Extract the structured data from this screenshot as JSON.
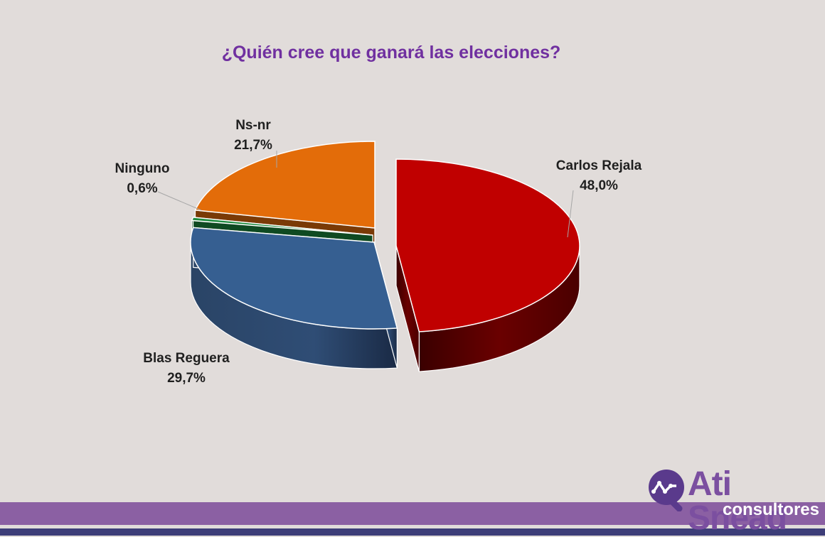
{
  "chart_data": {
    "type": "pie",
    "title": "¿Quién cree que ganará las elecciones?",
    "slices": [
      {
        "label": "Carlos Rejala",
        "value": 48.0,
        "display": "48,0%",
        "color": "#c00000"
      },
      {
        "label": "Blas Reguera",
        "value": 29.7,
        "display": "29,7%",
        "color": "#365f91"
      },
      {
        "label": "Ninguno",
        "value": 0.6,
        "display": "0,6%",
        "color": "#1e8a3e"
      },
      {
        "label": "Ns-nr",
        "value": 21.7,
        "display": "21,7%",
        "color": "#e36c09"
      }
    ],
    "style": "3d-exploded"
  },
  "branding": {
    "logo_main": "Ati Snead",
    "logo_sub": "consultores",
    "brand_purple": "#8b60a3",
    "brand_navy": "#3d3d78"
  }
}
